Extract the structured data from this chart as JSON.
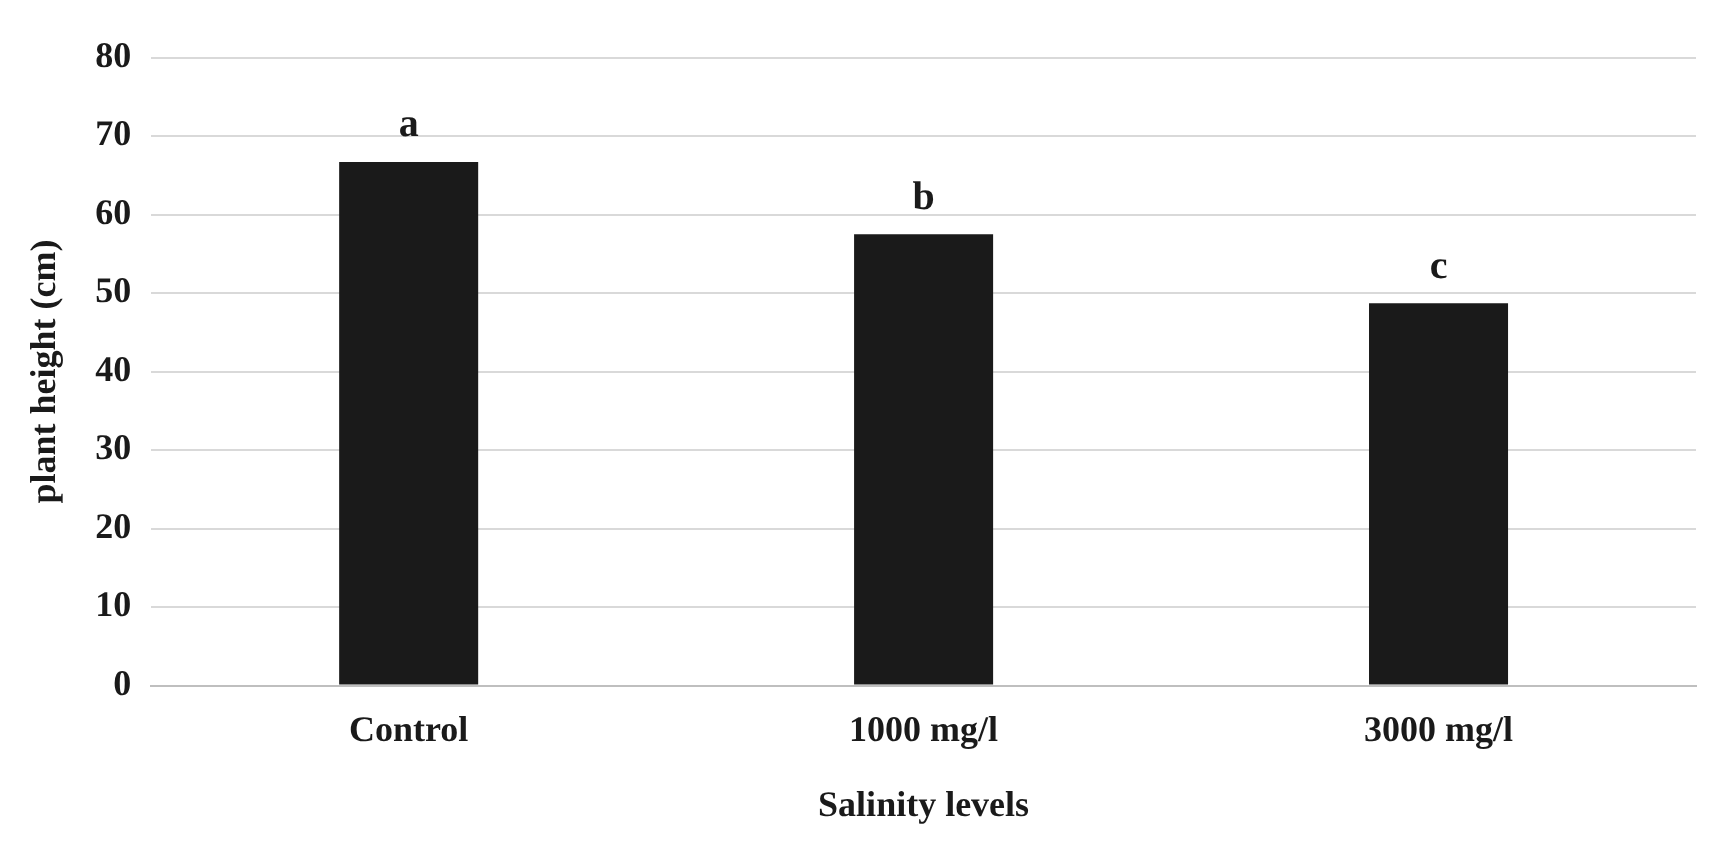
{
  "chart_data": {
    "type": "bar",
    "xlabel": "Salinity levels",
    "ylabel": "plant height (cm)",
    "categories": [
      "Control",
      "1000 mg/l",
      "3000 mg/l"
    ],
    "values": [
      66.7,
      57.5,
      48.7
    ],
    "color": "#1a1a1a",
    "ylim": [
      0,
      80
    ],
    "yticks": [
      0,
      10,
      20,
      30,
      40,
      50,
      60,
      70,
      80
    ],
    "grid": "y",
    "legend": false,
    "annotations": [
      {
        "text": "a",
        "x": "Control",
        "y": 66.7
      },
      {
        "text": "b",
        "x": "1000 mg/l",
        "y": 57.5
      },
      {
        "text": "c",
        "x": "3000 mg/l",
        "y": 48.7
      }
    ]
  }
}
